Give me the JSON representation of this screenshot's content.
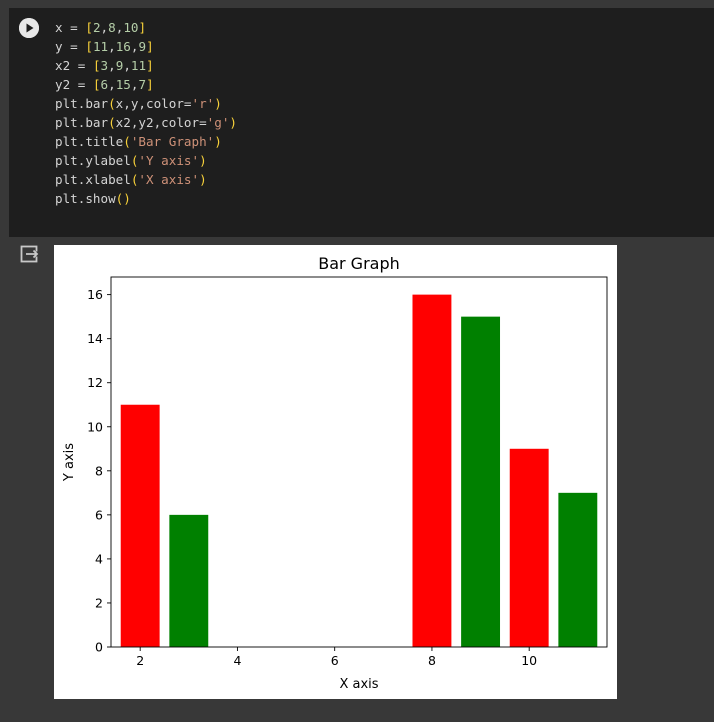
{
  "code_cell": {
    "lines": [
      [
        {
          "t": "x ",
          "c": "op"
        },
        {
          "t": "=",
          "c": "op"
        },
        {
          "t": " ",
          "c": "op"
        },
        {
          "t": "[",
          "c": "brk1"
        },
        {
          "t": "2",
          "c": "num"
        },
        {
          "t": ",",
          "c": "op"
        },
        {
          "t": "8",
          "c": "num"
        },
        {
          "t": ",",
          "c": "op"
        },
        {
          "t": "10",
          "c": "num"
        },
        {
          "t": "]",
          "c": "brk1"
        }
      ],
      [
        {
          "t": "y ",
          "c": "op"
        },
        {
          "t": "=",
          "c": "op"
        },
        {
          "t": " ",
          "c": "op"
        },
        {
          "t": "[",
          "c": "brk1"
        },
        {
          "t": "11",
          "c": "num"
        },
        {
          "t": ",",
          "c": "op"
        },
        {
          "t": "16",
          "c": "num"
        },
        {
          "t": ",",
          "c": "op"
        },
        {
          "t": "9",
          "c": "num"
        },
        {
          "t": "]",
          "c": "brk1"
        }
      ],
      [
        {
          "t": "x2 ",
          "c": "op"
        },
        {
          "t": "=",
          "c": "op"
        },
        {
          "t": " ",
          "c": "op"
        },
        {
          "t": "[",
          "c": "brk1"
        },
        {
          "t": "3",
          "c": "num"
        },
        {
          "t": ",",
          "c": "op"
        },
        {
          "t": "9",
          "c": "num"
        },
        {
          "t": ",",
          "c": "op"
        },
        {
          "t": "11",
          "c": "num"
        },
        {
          "t": "]",
          "c": "brk1"
        }
      ],
      [
        {
          "t": "y2 ",
          "c": "op"
        },
        {
          "t": "=",
          "c": "op"
        },
        {
          "t": " ",
          "c": "op"
        },
        {
          "t": "[",
          "c": "brk1"
        },
        {
          "t": "6",
          "c": "num"
        },
        {
          "t": ",",
          "c": "op"
        },
        {
          "t": "15",
          "c": "num"
        },
        {
          "t": ",",
          "c": "op"
        },
        {
          "t": "7",
          "c": "num"
        },
        {
          "t": "]",
          "c": "brk1"
        }
      ],
      [
        {
          "t": "plt.bar",
          "c": "op"
        },
        {
          "t": "(",
          "c": "brk1"
        },
        {
          "t": "x,y,color=",
          "c": "op"
        },
        {
          "t": "'r'",
          "c": "str"
        },
        {
          "t": ")",
          "c": "brk1"
        }
      ],
      [
        {
          "t": "plt.bar",
          "c": "op"
        },
        {
          "t": "(",
          "c": "brk1"
        },
        {
          "t": "x2,y2,color=",
          "c": "op"
        },
        {
          "t": "'g'",
          "c": "str"
        },
        {
          "t": ")",
          "c": "brk1"
        }
      ],
      [
        {
          "t": "plt.title",
          "c": "op"
        },
        {
          "t": "(",
          "c": "brk1"
        },
        {
          "t": "'Bar Graph'",
          "c": "str"
        },
        {
          "t": ")",
          "c": "brk1"
        }
      ],
      [
        {
          "t": "plt.ylabel",
          "c": "op"
        },
        {
          "t": "(",
          "c": "brk1"
        },
        {
          "t": "'Y axis'",
          "c": "str"
        },
        {
          "t": ")",
          "c": "brk1"
        }
      ],
      [
        {
          "t": "plt.xlabel",
          "c": "op"
        },
        {
          "t": "(",
          "c": "brk1"
        },
        {
          "t": "'X axis'",
          "c": "str"
        },
        {
          "t": ")",
          "c": "brk1"
        }
      ],
      [
        {
          "t": "plt.show",
          "c": "op"
        },
        {
          "t": "(",
          "c": "brk1"
        },
        {
          "t": ")",
          "c": "brk1"
        }
      ]
    ]
  },
  "icons": {
    "run": "play-circle-icon",
    "output": "output-toggle-icon"
  },
  "colors": {
    "page_bg": "#383838",
    "cell_bg": "#1e1e1e",
    "red_series": "#ff0000",
    "green_series": "#008000"
  },
  "chart_data": {
    "type": "bar",
    "title": "Bar Graph",
    "xlabel": "X axis",
    "ylabel": "Y axis",
    "xlim": [
      1.4,
      11.6
    ],
    "ylim": [
      0,
      16.8
    ],
    "xticks": [
      2,
      4,
      6,
      8,
      10
    ],
    "yticks": [
      0,
      2,
      4,
      6,
      8,
      10,
      12,
      14,
      16
    ],
    "bar_width": 0.8,
    "series": [
      {
        "color": "#ff0000",
        "x": [
          2,
          8,
          10
        ],
        "values": [
          11,
          16,
          9
        ]
      },
      {
        "color": "#008000",
        "x": [
          3,
          9,
          11
        ],
        "values": [
          6,
          15,
          7
        ]
      }
    ]
  }
}
